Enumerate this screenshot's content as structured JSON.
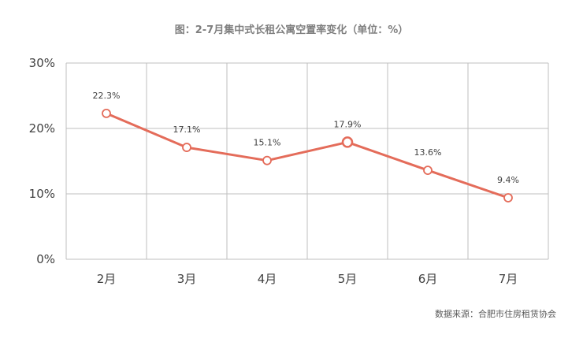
{
  "chart_data": {
    "type": "line",
    "title": "图：2-7月集中式长租公寓空置率变化（单位：%）",
    "source": "数据来源：合肥市住房租赁协会",
    "categories": [
      "2月",
      "3月",
      "4月",
      "5月",
      "6月",
      "7月"
    ],
    "series": [
      {
        "values": [
          22.3,
          17.1,
          15.1,
          17.9,
          13.6,
          9.4
        ],
        "data_labels": [
          "22.3%",
          "17.1%",
          "15.1%",
          "17.9%",
          "13.6%",
          "9.4%"
        ]
      }
    ],
    "ylim": [
      0,
      30
    ],
    "yticks": [
      0,
      10,
      20,
      30
    ],
    "ytick_labels": [
      "0%",
      "10%",
      "20%",
      "30%"
    ],
    "grid": true,
    "colors": {
      "line": "#e46c5a",
      "marker_fill": "#ffffff",
      "grid": "#bfbfbf",
      "title": "#7f7f7f"
    }
  }
}
